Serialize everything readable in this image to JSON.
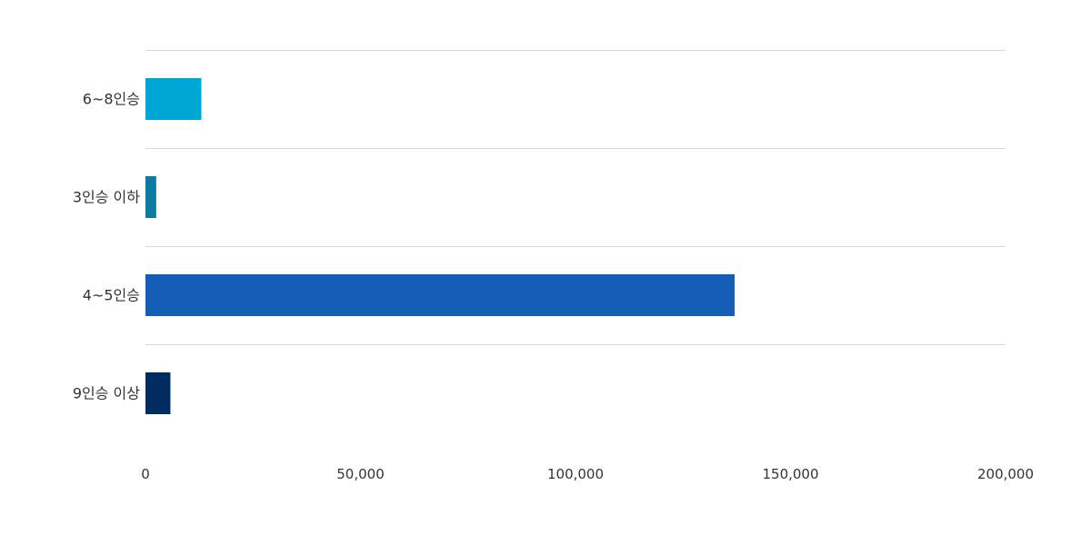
{
  "chart_data": {
    "type": "bar",
    "orientation": "horizontal",
    "categories": [
      "6~8인승",
      "3인승 이하",
      "4~5인승",
      "9인승 이상"
    ],
    "values": [
      13000,
      2500,
      137000,
      5800
    ],
    "colors": [
      "#00a6d4",
      "#0b7aa3",
      "#135db6",
      "#002b5e"
    ],
    "xlim": [
      0,
      200000
    ],
    "xticks": [
      0,
      50000,
      100000,
      150000,
      200000
    ],
    "xtick_labels": [
      "0",
      "50,000",
      "100,000",
      "150,000",
      "200,000"
    ],
    "title": "",
    "xlabel": "",
    "ylabel": "",
    "grid": true,
    "legend": false
  }
}
